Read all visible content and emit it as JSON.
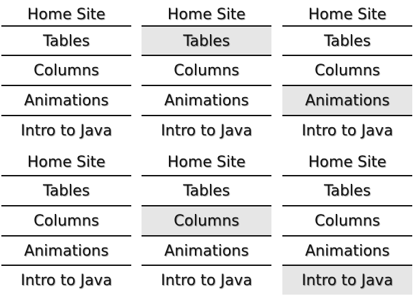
{
  "menus": [
    {
      "items": [
        {
          "label": "Home Site"
        },
        {
          "label": "Tables"
        },
        {
          "label": "Columns"
        },
        {
          "label": "Animations"
        },
        {
          "label": "Intro to Java"
        }
      ],
      "active_item": "none"
    },
    {
      "items": [
        {
          "label": "Home Site"
        },
        {
          "label": "Tables"
        },
        {
          "label": "Columns"
        },
        {
          "label": "Animations"
        },
        {
          "label": "Intro to Java"
        }
      ],
      "active_item": "Tables"
    },
    {
      "items": [
        {
          "label": "Home Site"
        },
        {
          "label": "Tables"
        },
        {
          "label": "Columns"
        },
        {
          "label": "Animations"
        },
        {
          "label": "Intro to Java"
        }
      ],
      "active_item": "Animations"
    },
    {
      "items": [
        {
          "label": "Home Site"
        },
        {
          "label": "Tables"
        },
        {
          "label": "Columns"
        },
        {
          "label": "Animations"
        },
        {
          "label": "Intro to Java"
        }
      ],
      "active_item": "none"
    },
    {
      "items": [
        {
          "label": "Home Site"
        },
        {
          "label": "Tables"
        },
        {
          "label": "Columns"
        },
        {
          "label": "Animations"
        },
        {
          "label": "Intro to Java"
        }
      ],
      "active_item": "Columns"
    },
    {
      "items": [
        {
          "label": "Home Site"
        },
        {
          "label": "Tables"
        },
        {
          "label": "Columns"
        },
        {
          "label": "Animations"
        },
        {
          "label": "Intro to Java"
        }
      ],
      "active_item": "Intro to Java"
    }
  ],
  "colors": {
    "active_background": "#e6e6e6",
    "text": "#111111",
    "divider": "#111111"
  }
}
